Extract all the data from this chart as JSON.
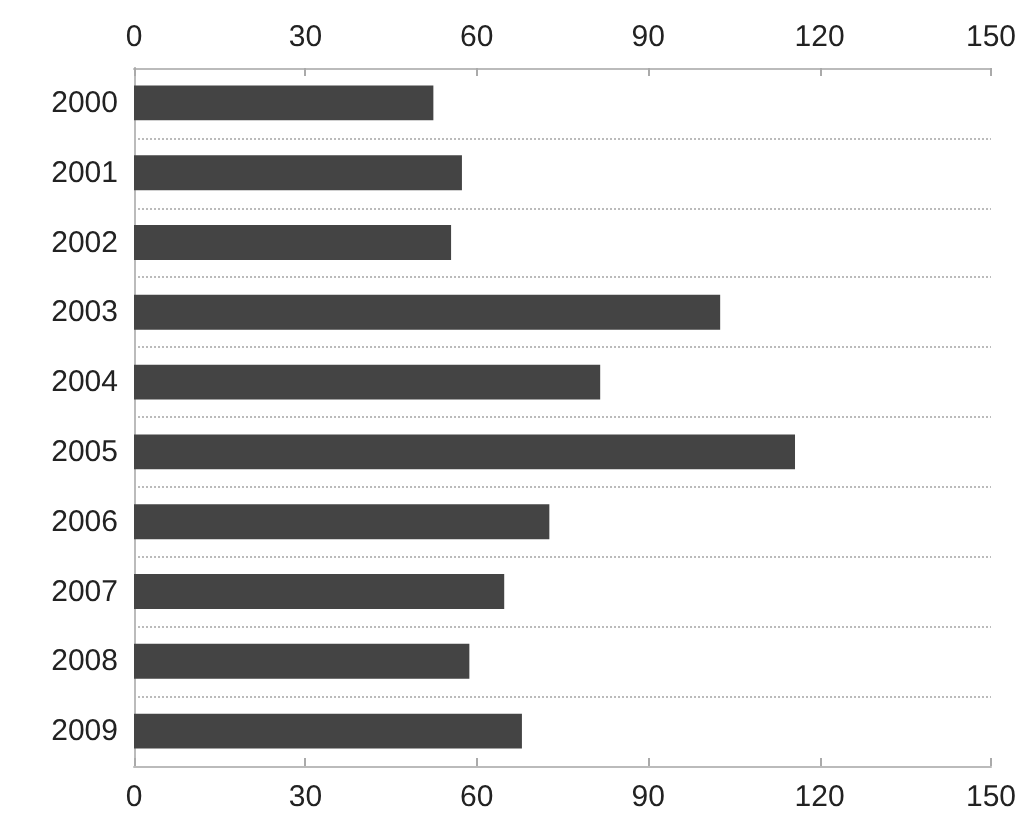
{
  "chart_data": {
    "type": "bar",
    "orientation": "horizontal",
    "categories": [
      "2000",
      "2001",
      "2002",
      "2003",
      "2004",
      "2005",
      "2006",
      "2007",
      "2008",
      "2009"
    ],
    "values": [
      52.4,
      57.4,
      55.5,
      102.6,
      81.6,
      115.7,
      72.7,
      64.8,
      58.7,
      67.9
    ],
    "color": "#444444",
    "xlim": [
      0,
      150
    ],
    "xticks": [
      0,
      30,
      60,
      90,
      120,
      150
    ],
    "x2lim": [
      0,
      150
    ],
    "x2ticks": [
      0,
      30,
      60,
      90,
      120,
      150
    ],
    "grid": "y"
  }
}
